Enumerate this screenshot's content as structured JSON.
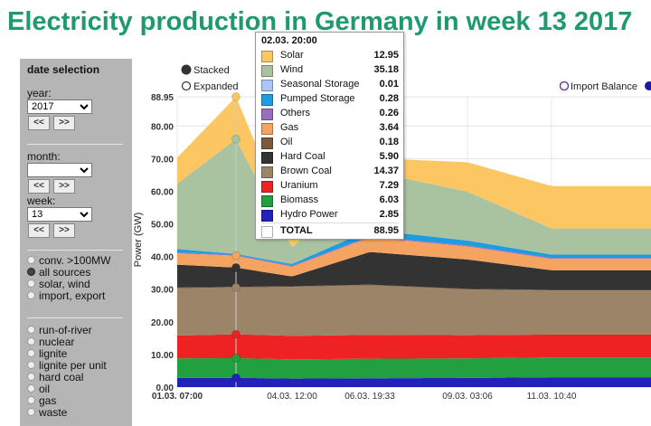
{
  "title": "Electricity production in Germany in week 13 2017",
  "sidebar": {
    "title": "date selection",
    "year_label": "year:",
    "year_value": "2017",
    "month_label": "month:",
    "month_value": "",
    "week_label": "week:",
    "week_value": "13",
    "prev": "<<",
    "next": ">>",
    "source_options": [
      {
        "label": "conv. >100MW",
        "selected": false
      },
      {
        "label": "all sources",
        "selected": true
      },
      {
        "label": "solar, wind",
        "selected": false
      },
      {
        "label": "import, export",
        "selected": false
      }
    ],
    "type_options": [
      {
        "label": "run-of-river"
      },
      {
        "label": "nuclear"
      },
      {
        "label": "lignite"
      },
      {
        "label": "lignite per unit"
      },
      {
        "label": "hard coal"
      },
      {
        "label": "oil"
      },
      {
        "label": "gas"
      },
      {
        "label": "waste"
      }
    ]
  },
  "legend_toggle": {
    "stacked": "Stacked",
    "expanded": "Expanded"
  },
  "import_balance_label": "Import Balance",
  "tooltip": {
    "time": "02.03. 20:00",
    "rows": [
      {
        "name": "Solar",
        "value": "12.95",
        "color": "#fcc762"
      },
      {
        "name": "Wind",
        "value": "35.18",
        "color": "#a9c3a0"
      },
      {
        "name": "Seasonal Storage",
        "value": "0.01",
        "color": "#a9c7f2"
      },
      {
        "name": "Pumped Storage",
        "value": "0.28",
        "color": "#1d9ce0"
      },
      {
        "name": "Others",
        "value": "0.26",
        "color": "#9a6fbd"
      },
      {
        "name": "Gas",
        "value": "3.64",
        "color": "#f4a460"
      },
      {
        "name": "Oil",
        "value": "0.18",
        "color": "#7b5a3c"
      },
      {
        "name": "Hard Coal",
        "value": "5.90",
        "color": "#333333"
      },
      {
        "name": "Brown Coal",
        "value": "14.37",
        "color": "#9c8469"
      },
      {
        "name": "Uranium",
        "value": "7.29",
        "color": "#ee2222"
      },
      {
        "name": "Biomass",
        "value": "6.03",
        "color": "#22a040"
      },
      {
        "name": "Hydro Power",
        "value": "2.85",
        "color": "#2222bb"
      }
    ],
    "total_label": "TOTAL",
    "total_value": "88.95"
  },
  "chart_data": {
    "type": "area",
    "stacked": true,
    "title": "Electricity production in Germany in week 13 2017",
    "xlabel": "",
    "ylabel": "Power (GW)",
    "ylim": [
      0,
      88.95
    ],
    "yticks": [
      "0.00",
      "10.00",
      "20.00",
      "30.00",
      "40.00",
      "50.00",
      "60.00",
      "70.00",
      "80.00",
      "88.95"
    ],
    "ytick_values": [
      0,
      10,
      20,
      30,
      40,
      50,
      60,
      70,
      80,
      88.95
    ],
    "x": [
      "01.03. 07:00",
      "02.03. 20:00",
      "04.03. 12:00",
      "06.03. 19:33",
      "09.03. 03:06",
      "11.03. 10:40"
    ],
    "series": [
      {
        "name": "Hydro Power",
        "color": "#2222bb",
        "values": [
          2.8,
          2.85,
          2.6,
          2.7,
          2.8,
          3.0
        ]
      },
      {
        "name": "Biomass",
        "color": "#22a040",
        "values": [
          6.0,
          6.03,
          5.9,
          6.0,
          6.0,
          6.1
        ]
      },
      {
        "name": "Uranium",
        "color": "#ee2222",
        "values": [
          7.0,
          7.29,
          7.2,
          7.3,
          7.1,
          7.0
        ]
      },
      {
        "name": "Brown Coal",
        "color": "#9c8469",
        "values": [
          14.5,
          14.37,
          15.0,
          15.2,
          14.0,
          13.5
        ]
      },
      {
        "name": "Oil",
        "color": "#7b5a3c",
        "values": [
          0.2,
          0.18,
          0.2,
          0.2,
          0.2,
          0.2
        ]
      },
      {
        "name": "Hard Coal",
        "color": "#333333",
        "values": [
          7.0,
          5.9,
          3.0,
          10.0,
          9.0,
          6.0
        ]
      },
      {
        "name": "Gas",
        "color": "#f4a460",
        "values": [
          3.5,
          3.64,
          3.0,
          4.5,
          4.0,
          3.5
        ]
      },
      {
        "name": "Others",
        "color": "#9a6fbd",
        "values": [
          0.3,
          0.26,
          0.3,
          0.3,
          0.3,
          0.3
        ]
      },
      {
        "name": "Pumped Storage",
        "color": "#1d9ce0",
        "values": [
          1.0,
          0.28,
          0.5,
          2.0,
          1.5,
          1.0
        ]
      },
      {
        "name": "Seasonal Storage",
        "color": "#a9c7f2",
        "values": [
          0.0,
          0.01,
          0.0,
          0.0,
          0.0,
          0.0
        ]
      },
      {
        "name": "Wind",
        "color": "#a9c3a0",
        "values": [
          20.0,
          35.18,
          5.0,
          18.0,
          15.0,
          8.0
        ]
      },
      {
        "name": "Solar",
        "color": "#fcc762",
        "values": [
          8.0,
          12.95,
          5.0,
          4.0,
          9.0,
          13.0
        ]
      }
    ],
    "cursor_x": "02.03. 20:00",
    "grid": true
  }
}
